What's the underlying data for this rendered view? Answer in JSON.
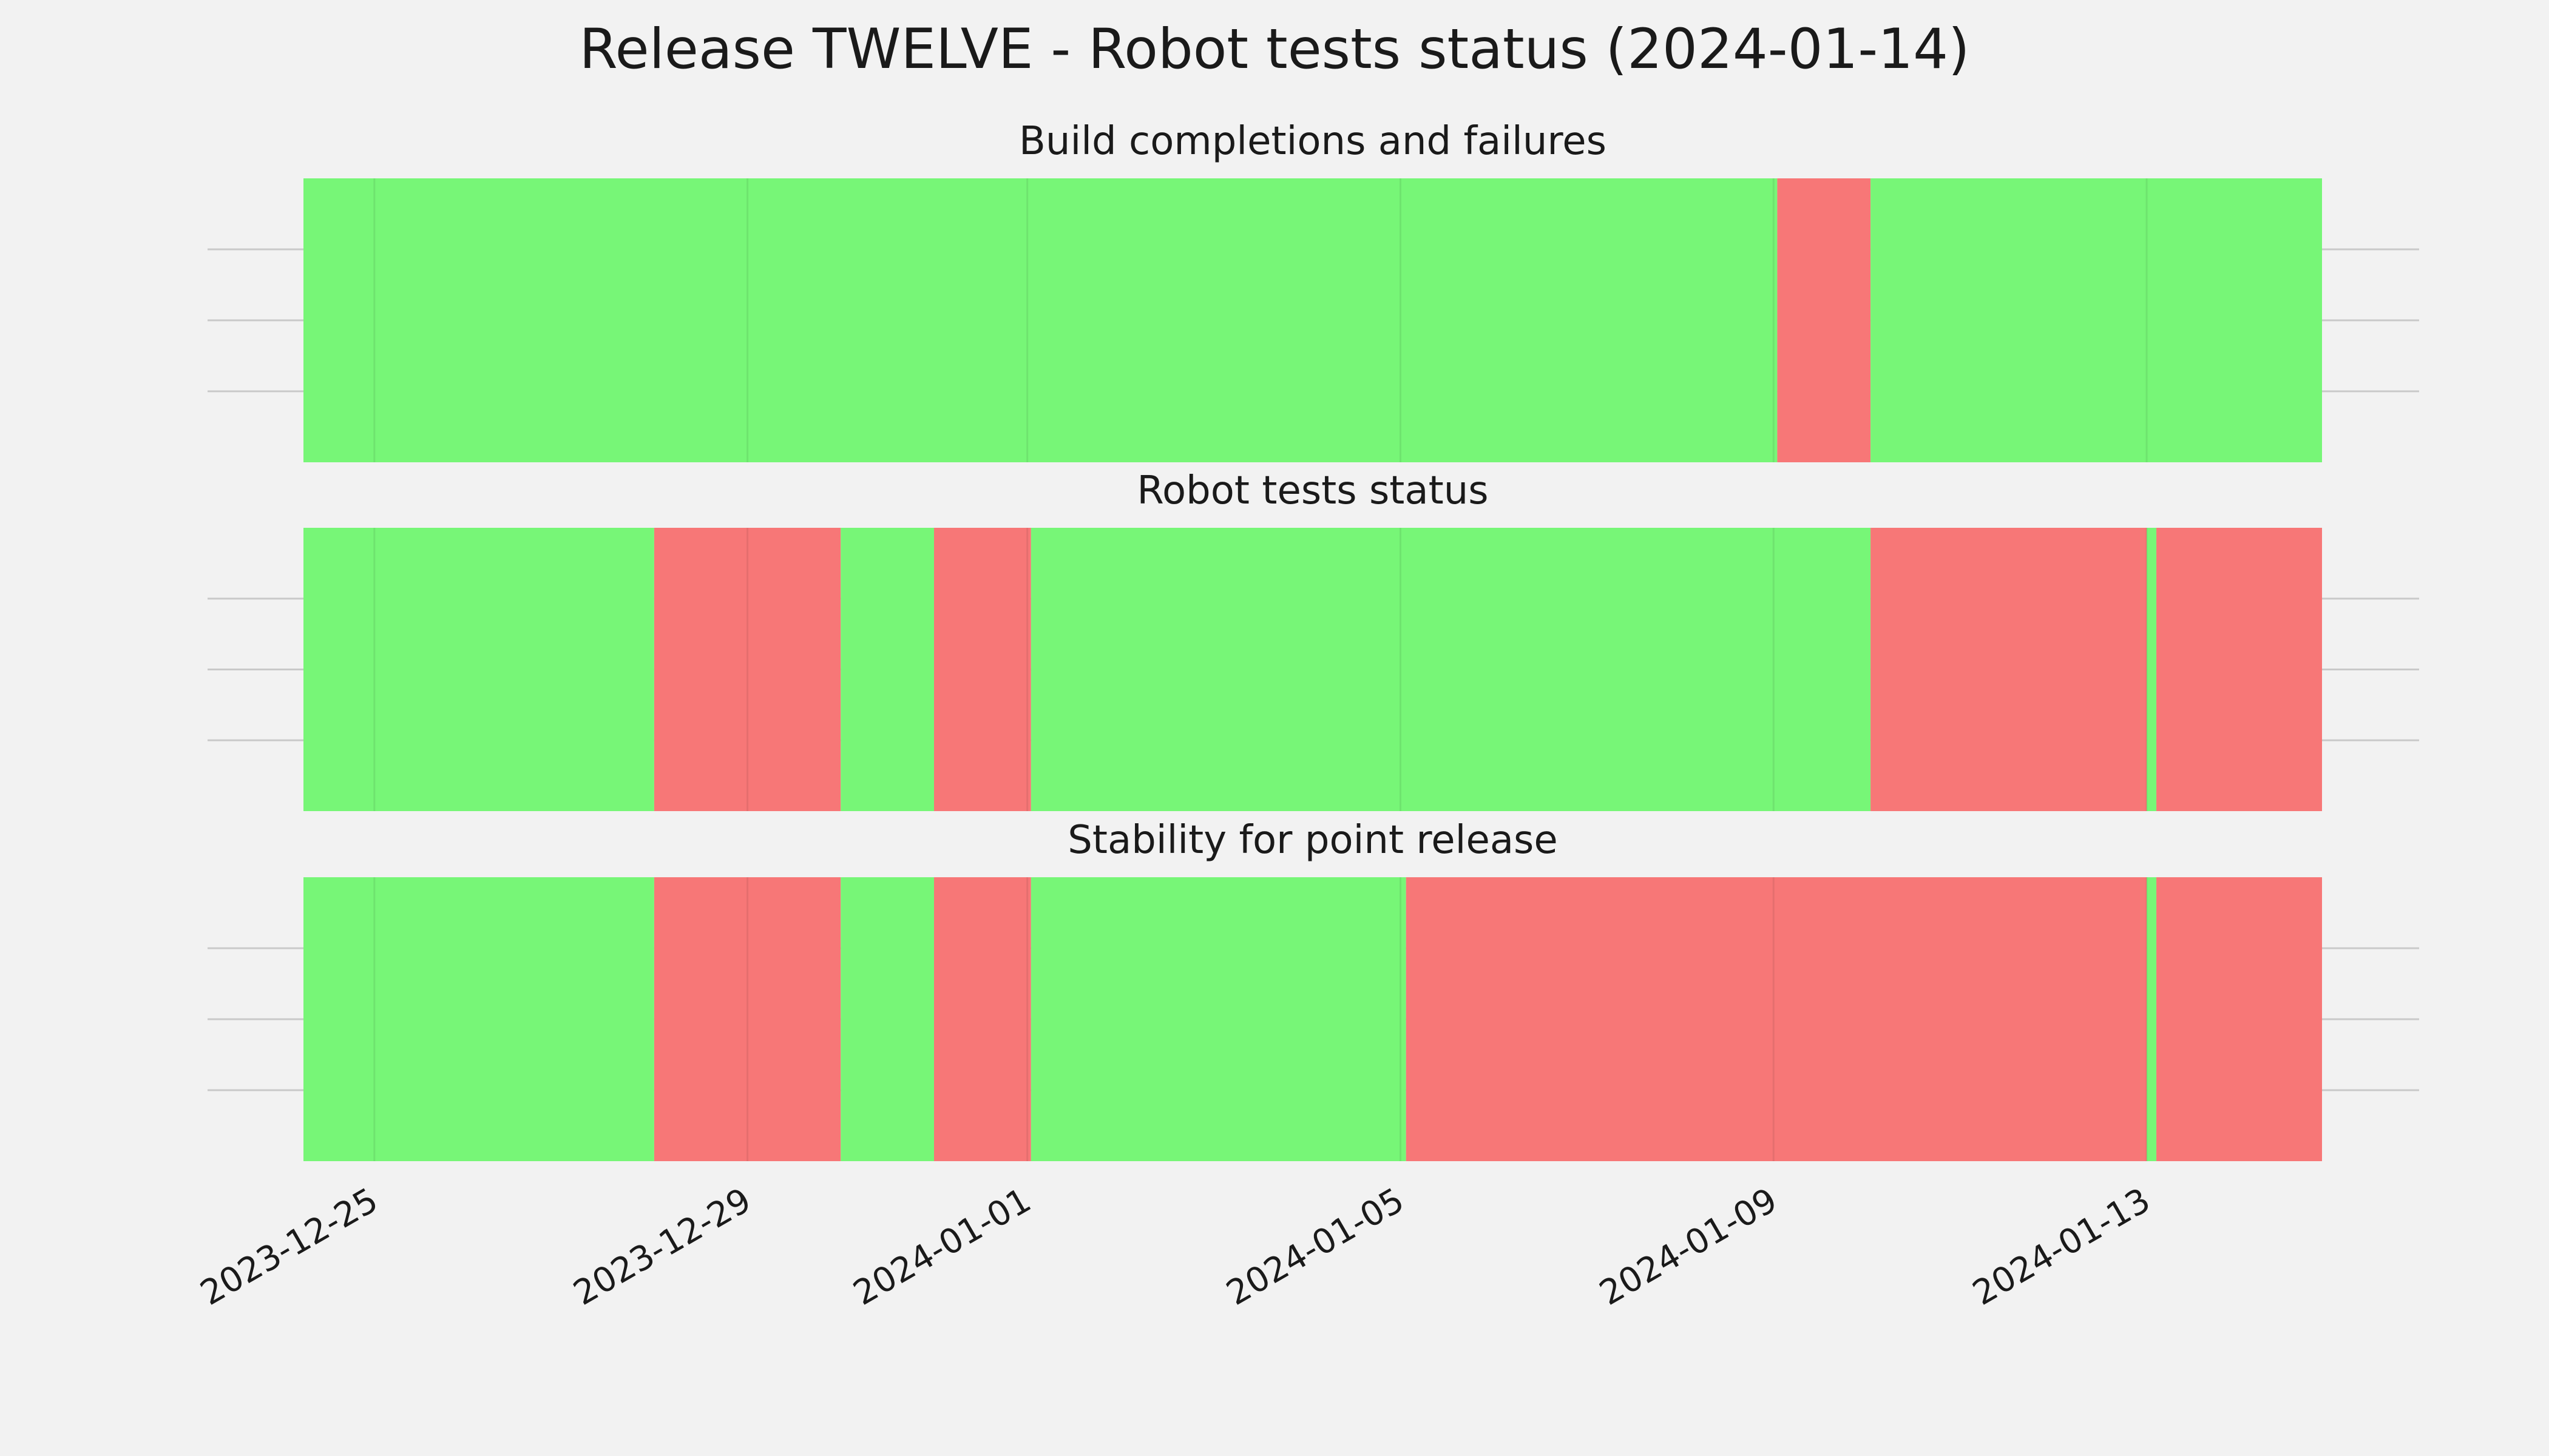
{
  "chart_data": {
    "type": "timeline",
    "title": "Release TWELVE - Robot tests status (2024-01-14)",
    "xlim": [
      "2023-12-24",
      "2024-01-15"
    ],
    "grid": true,
    "x_ticks": [
      "2023-12-25",
      "2023-12-29",
      "2024-01-01",
      "2024-01-05",
      "2024-01-09",
      "2024-01-13"
    ],
    "colors": {
      "pass": "#77f677",
      "fail": "#f77777",
      "background": "#f2f2f2",
      "grid": "#c9c9c9"
    },
    "panels": [
      {
        "title": "Build completions and failures",
        "segments": [
          {
            "start": "2023-12-24",
            "end": "2024-01-09",
            "status": "pass"
          },
          {
            "start": "2024-01-09",
            "end": "2024-01-10",
            "status": "fail"
          },
          {
            "start": "2024-01-10",
            "end": "2024-01-15",
            "status": "pass"
          }
        ]
      },
      {
        "title": "Robot tests status",
        "segments": [
          {
            "start": "2023-12-24",
            "end": "2023-12-28",
            "status": "pass"
          },
          {
            "start": "2023-12-28",
            "end": "2023-12-30",
            "status": "fail"
          },
          {
            "start": "2023-12-30",
            "end": "2023-12-31",
            "status": "pass"
          },
          {
            "start": "2023-12-31",
            "end": "2024-01-01",
            "status": "fail"
          },
          {
            "start": "2024-01-01",
            "end": "2024-01-10",
            "status": "pass"
          },
          {
            "start": "2024-01-10",
            "end": "2024-01-13",
            "status": "fail"
          },
          {
            "start": "2024-01-13",
            "end": "2024-01-13",
            "status": "pass"
          },
          {
            "start": "2024-01-13",
            "end": "2024-01-15",
            "status": "fail"
          }
        ]
      },
      {
        "title": "Stability for point release",
        "segments": [
          {
            "start": "2023-12-24",
            "end": "2023-12-28",
            "status": "pass"
          },
          {
            "start": "2023-12-28",
            "end": "2023-12-30",
            "status": "fail"
          },
          {
            "start": "2023-12-30",
            "end": "2023-12-31",
            "status": "pass"
          },
          {
            "start": "2023-12-31",
            "end": "2024-01-01",
            "status": "fail"
          },
          {
            "start": "2024-01-01",
            "end": "2024-01-05",
            "status": "pass"
          },
          {
            "start": "2024-01-05",
            "end": "2024-01-13",
            "status": "fail"
          },
          {
            "start": "2024-01-13",
            "end": "2024-01-13",
            "status": "pass"
          },
          {
            "start": "2024-01-13",
            "end": "2024-01-15",
            "status": "fail"
          }
        ]
      }
    ]
  }
}
